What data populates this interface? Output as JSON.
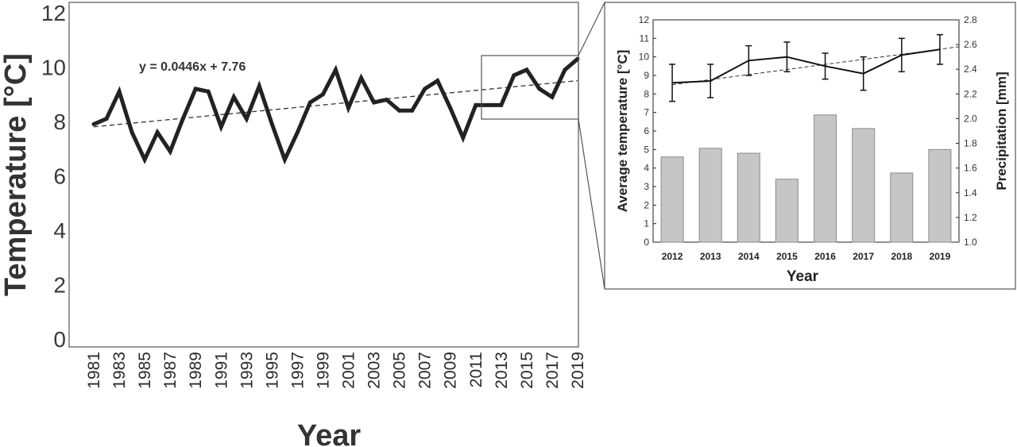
{
  "chart_data": [
    {
      "type": "line",
      "id": "main",
      "title": "",
      "xlabel": "Year",
      "ylabel": "Temperature [°C]",
      "ylim": [
        0,
        12
      ],
      "xlim": [
        1981,
        2019
      ],
      "yticks": [
        "0",
        "2",
        "4",
        "6",
        "8",
        "10",
        "12"
      ],
      "xticks": [
        "1981",
        "1983",
        "1985",
        "1987",
        "1989",
        "1991",
        "1993",
        "1995",
        "1997",
        "1999",
        "2001",
        "2003",
        "2005",
        "2007",
        "2009",
        "2011",
        "2013",
        "2015",
        "2017",
        "2019"
      ],
      "equation": "y = 0.0446x + 7.76",
      "trendline": {
        "slope": 0.0446,
        "intercept": 7.76
      },
      "series": [
        {
          "x": [
            1981,
            1982,
            1983,
            1984,
            1985,
            1986,
            1987,
            1988,
            1989,
            1990,
            1991,
            1992,
            1993,
            1994,
            1995,
            1996,
            1997,
            1998,
            1999,
            2000,
            2001,
            2002,
            2003,
            2004,
            2005,
            2006,
            2007,
            2008,
            2009,
            2010,
            2011,
            2012,
            2013,
            2014,
            2015,
            2016,
            2017,
            2018,
            2019
          ],
          "values": [
            7.9,
            8.1,
            9.1,
            7.6,
            6.6,
            7.6,
            6.9,
            8.1,
            9.2,
            9.1,
            7.8,
            8.9,
            8.1,
            9.3,
            7.9,
            6.6,
            7.6,
            8.7,
            9.0,
            9.9,
            8.5,
            9.6,
            8.7,
            8.8,
            8.4,
            8.4,
            9.2,
            9.5,
            8.5,
            7.4,
            8.6,
            8.6,
            8.6,
            9.7,
            9.9,
            9.2,
            8.9,
            9.9,
            10.3
          ]
        }
      ],
      "grid": false
    },
    {
      "type": "bar+line",
      "id": "inset",
      "title": "",
      "xlabel": "Year",
      "ylabel": "Average temperature [°C]",
      "y2label": "Precipitation [mm]",
      "categories": [
        "2012",
        "2013",
        "2014",
        "2015",
        "2016",
        "2017",
        "2018",
        "2019"
      ],
      "ylim": [
        0,
        12
      ],
      "y2lim": [
        1.0,
        2.8
      ],
      "yticks": [
        "0",
        "1",
        "2",
        "3",
        "4",
        "5",
        "6",
        "7",
        "8",
        "9",
        "10",
        "11",
        "12"
      ],
      "y2ticks": [
        "1.0",
        "1.2",
        "1.4",
        "1.6",
        "1.8",
        "2.0",
        "2.2",
        "2.4",
        "2.6",
        "2.8"
      ],
      "series": [
        {
          "name": "",
          "axis": "right",
          "kind": "bar",
          "color": "#c6c6c6",
          "values": [
            1.69,
            1.76,
            1.72,
            1.51,
            2.03,
            1.92,
            1.56,
            1.75
          ]
        },
        {
          "name": "",
          "axis": "left",
          "kind": "line",
          "color": "#111111",
          "values": [
            8.6,
            8.7,
            9.8,
            10.0,
            9.5,
            9.1,
            10.1,
            10.4
          ],
          "error": [
            1.0,
            0.9,
            0.8,
            0.8,
            0.7,
            0.9,
            0.9,
            0.8
          ]
        }
      ],
      "trendline": {
        "from": 8.5,
        "to": 10.55
      },
      "grid": false
    }
  ]
}
